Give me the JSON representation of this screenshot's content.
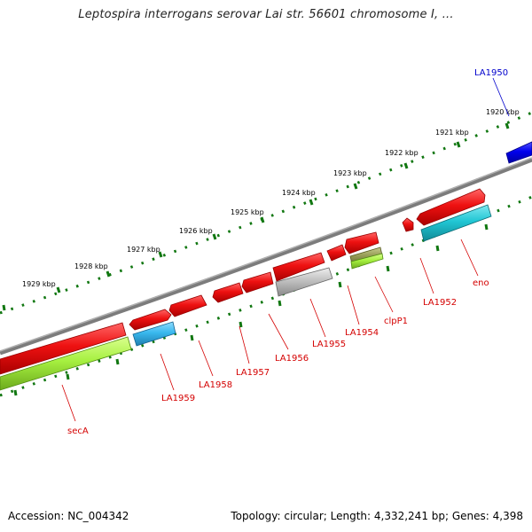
{
  "header": {
    "title": "Leptospira interrogans serovar Lai str. 56601 chromosome I, ..."
  },
  "footer": {
    "accession": "Accession: NC_004342",
    "topology": "Topology: circular; Length: 4,332,241 bp; Genes: 4,398"
  },
  "colors": {
    "backbone": "#8a8a8a",
    "gene_red": "#ee1111",
    "gene_blue": "#0000ee",
    "gene_cyan": "#21c6d4",
    "gene_sky": "#39b8ee",
    "gene_grey": "#c0c0c0",
    "gene_lime": "#a6f040",
    "gene_olive": "#9aa05a",
    "scale_dots": "#117711",
    "label_red": "#d40000",
    "label_blue": "#0000cc"
  },
  "scale": {
    "ticks": [
      "1920 kbp",
      "1921 kbp",
      "1922 kbp",
      "1923 kbp",
      "1924 kbp",
      "1925 kbp",
      "1926 kbp",
      "1927 kbp",
      "1928 kbp",
      "1929 kbp"
    ]
  },
  "genes": [
    {
      "label": "LA1950",
      "color": "blue"
    },
    {
      "label": "eno",
      "color": "red"
    },
    {
      "label": "LA1952",
      "color": "red"
    },
    {
      "label": "clpP1",
      "color": "red"
    },
    {
      "label": "LA1954",
      "color": "red"
    },
    {
      "label": "LA1955",
      "color": "red"
    },
    {
      "label": "LA1956",
      "color": "red"
    },
    {
      "label": "LA1957",
      "color": "red"
    },
    {
      "label": "LA1958",
      "color": "red"
    },
    {
      "label": "LA1959",
      "color": "red"
    },
    {
      "label": "secA",
      "color": "red"
    }
  ]
}
